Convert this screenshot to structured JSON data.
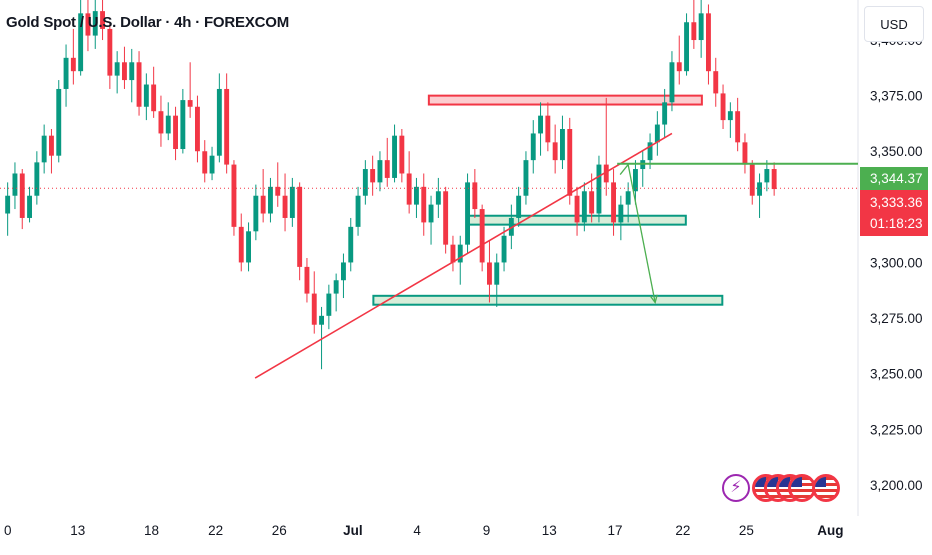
{
  "header": {
    "title": "Gold Spot / U.S. Dollar · 4h · FOREXCOM",
    "currency": "USD"
  },
  "price_tags": {
    "target_price": "3,344.37",
    "last_price": "3,333.36",
    "countdown": "01:18:23"
  },
  "colors": {
    "up": "#089981",
    "down": "#f23645",
    "green_line": "#4caf50",
    "resistance_fill": "rgba(242,54,69,0.25)",
    "support_fill": "rgba(76,175,80,0.22)",
    "trendline": "#f23645"
  },
  "badges": [
    "lightning-icon",
    "us-flag-icon",
    "us-flag-icon",
    "us-flag-icon",
    "us-flag-icon",
    "us-flag-icon"
  ],
  "chart_data": {
    "type": "candlestick",
    "title": "Gold Spot / U.S. Dollar · 4h · FOREXCOM",
    "y_ticks": [
      "3,400.00",
      "3,375.00",
      "3,350.00",
      "3,300.00",
      "3,275.00",
      "3,250.00",
      "3,225.00",
      "3,200.00"
    ],
    "y_tick_values": [
      3400,
      3375,
      3350,
      3300,
      3275,
      3250,
      3225,
      3200
    ],
    "ylim": [
      3186,
      3418
    ],
    "x_ticks": [
      "0",
      "13",
      "18",
      "22",
      "26",
      "Jul",
      "4",
      "9",
      "13",
      "17",
      "22",
      "25",
      "Aug"
    ],
    "x_tick_index": [
      0,
      10.1,
      20.2,
      29.0,
      37.7,
      47.8,
      56.6,
      66.1,
      74.7,
      83.7,
      93.0,
      101.7,
      113.2
    ],
    "bars_visible": 117,
    "last_price": 3333.36,
    "target_price": 3344.37,
    "candles_ohlc": [
      [
        3322,
        3336,
        3312,
        3330
      ],
      [
        3330,
        3345,
        3324,
        3340
      ],
      [
        3340,
        3342,
        3315,
        3320
      ],
      [
        3320,
        3334,
        3318,
        3330
      ],
      [
        3330,
        3350,
        3326,
        3345
      ],
      [
        3345,
        3362,
        3340,
        3357
      ],
      [
        3357,
        3360,
        3340,
        3348
      ],
      [
        3348,
        3382,
        3345,
        3378
      ],
      [
        3378,
        3398,
        3370,
        3392
      ],
      [
        3392,
        3405,
        3380,
        3386
      ],
      [
        3386,
        3418,
        3384,
        3412
      ],
      [
        3412,
        3418,
        3395,
        3402
      ],
      [
        3402,
        3418,
        3396,
        3413
      ],
      [
        3413,
        3418,
        3400,
        3405
      ],
      [
        3405,
        3408,
        3378,
        3384
      ],
      [
        3384,
        3395,
        3376,
        3390
      ],
      [
        3390,
        3397,
        3378,
        3382
      ],
      [
        3382,
        3396,
        3372,
        3390
      ],
      [
        3390,
        3395,
        3366,
        3370
      ],
      [
        3370,
        3385,
        3364,
        3380
      ],
      [
        3380,
        3388,
        3365,
        3368
      ],
      [
        3368,
        3375,
        3352,
        3358
      ],
      [
        3358,
        3372,
        3355,
        3366
      ],
      [
        3366,
        3370,
        3346,
        3351
      ],
      [
        3351,
        3378,
        3349,
        3373
      ],
      [
        3373,
        3390,
        3365,
        3370
      ],
      [
        3370,
        3375,
        3345,
        3350
      ],
      [
        3350,
        3355,
        3336,
        3340
      ],
      [
        3340,
        3352,
        3337,
        3348
      ],
      [
        3348,
        3385,
        3345,
        3378
      ],
      [
        3378,
        3385,
        3340,
        3344
      ],
      [
        3344,
        3346,
        3312,
        3316
      ],
      [
        3316,
        3322,
        3296,
        3300
      ],
      [
        3300,
        3318,
        3296,
        3314
      ],
      [
        3314,
        3335,
        3310,
        3330
      ],
      [
        3330,
        3342,
        3318,
        3322
      ],
      [
        3322,
        3338,
        3318,
        3334
      ],
      [
        3334,
        3345,
        3325,
        3330
      ],
      [
        3330,
        3340,
        3314,
        3320
      ],
      [
        3320,
        3338,
        3316,
        3334
      ],
      [
        3334,
        3336,
        3292,
        3298
      ],
      [
        3298,
        3302,
        3282,
        3286
      ],
      [
        3286,
        3296,
        3268,
        3272
      ],
      [
        3272,
        3280,
        3252,
        3276
      ],
      [
        3276,
        3290,
        3270,
        3286
      ],
      [
        3286,
        3295,
        3278,
        3292
      ],
      [
        3292,
        3304,
        3284,
        3300
      ],
      [
        3300,
        3320,
        3296,
        3316
      ],
      [
        3316,
        3334,
        3312,
        3330
      ],
      [
        3330,
        3346,
        3326,
        3342
      ],
      [
        3342,
        3348,
        3330,
        3336
      ],
      [
        3336,
        3350,
        3332,
        3346
      ],
      [
        3346,
        3356,
        3334,
        3338
      ],
      [
        3338,
        3362,
        3336,
        3357
      ],
      [
        3357,
        3360,
        3336,
        3340
      ],
      [
        3340,
        3350,
        3322,
        3326
      ],
      [
        3326,
        3338,
        3320,
        3334
      ],
      [
        3334,
        3340,
        3312,
        3318
      ],
      [
        3318,
        3330,
        3308,
        3326
      ],
      [
        3326,
        3338,
        3320,
        3332
      ],
      [
        3332,
        3334,
        3304,
        3308
      ],
      [
        3308,
        3312,
        3296,
        3300
      ],
      [
        3300,
        3312,
        3290,
        3308
      ],
      [
        3308,
        3340,
        3304,
        3336
      ],
      [
        3336,
        3342,
        3320,
        3324
      ],
      [
        3324,
        3326,
        3296,
        3300
      ],
      [
        3300,
        3310,
        3282,
        3290
      ],
      [
        3290,
        3304,
        3280,
        3300
      ],
      [
        3300,
        3316,
        3296,
        3312
      ],
      [
        3312,
        3326,
        3306,
        3320
      ],
      [
        3320,
        3334,
        3316,
        3330
      ],
      [
        3330,
        3350,
        3326,
        3346
      ],
      [
        3346,
        3364,
        3340,
        3358
      ],
      [
        3358,
        3372,
        3348,
        3366
      ],
      [
        3366,
        3372,
        3350,
        3354
      ],
      [
        3354,
        3362,
        3340,
        3346
      ],
      [
        3346,
        3366,
        3342,
        3360
      ],
      [
        3360,
        3365,
        3326,
        3330
      ],
      [
        3330,
        3334,
        3312,
        3318
      ],
      [
        3318,
        3336,
        3314,
        3332
      ],
      [
        3332,
        3340,
        3318,
        3322
      ],
      [
        3322,
        3348,
        3318,
        3344
      ],
      [
        3344,
        3374,
        3330,
        3336
      ],
      [
        3336,
        3342,
        3312,
        3318
      ],
      [
        3318,
        3330,
        3310,
        3326
      ],
      [
        3326,
        3336,
        3318,
        3332
      ],
      [
        3332,
        3346,
        3326,
        3342
      ],
      [
        3342,
        3350,
        3334,
        3346
      ],
      [
        3346,
        3358,
        3342,
        3354
      ],
      [
        3354,
        3368,
        3348,
        3362
      ],
      [
        3362,
        3378,
        3356,
        3372
      ],
      [
        3372,
        3395,
        3368,
        3390
      ],
      [
        3390,
        3402,
        3380,
        3386
      ],
      [
        3386,
        3412,
        3384,
        3408
      ],
      [
        3408,
        3420,
        3396,
        3400
      ],
      [
        3400,
        3418,
        3392,
        3412
      ],
      [
        3412,
        3416,
        3380,
        3386
      ],
      [
        3386,
        3392,
        3370,
        3376
      ],
      [
        3376,
        3380,
        3360,
        3364
      ],
      [
        3364,
        3372,
        3356,
        3368
      ],
      [
        3368,
        3374,
        3350,
        3354
      ],
      [
        3354,
        3358,
        3340,
        3344
      ],
      [
        3344,
        3346,
        3326,
        3330
      ],
      [
        3330,
        3340,
        3320,
        3336
      ],
      [
        3336,
        3346,
        3332,
        3342
      ],
      [
        3342,
        3345,
        3330,
        3333
      ]
    ],
    "zones": [
      {
        "type": "resistance",
        "x_from": 58.2,
        "x_to": 95.6,
        "y_low": 3371,
        "y_high": 3375
      },
      {
        "type": "support",
        "x_from": 63.5,
        "x_to": 93.4,
        "y_low": 3317,
        "y_high": 3321
      },
      {
        "type": "support",
        "x_from": 50.6,
        "x_to": 98.4,
        "y_low": 3281,
        "y_high": 3285
      }
    ],
    "trendline": {
      "x_from": 34.4,
      "y_from": 3248,
      "x_to": 91.5,
      "y_to": 3358
    },
    "horizontal_line": {
      "x_from": 84.0,
      "y": 3344.37
    },
    "projection": [
      {
        "x": 85.5,
        "y": 3344
      },
      {
        "x": 89.2,
        "y": 3282
      }
    ]
  }
}
